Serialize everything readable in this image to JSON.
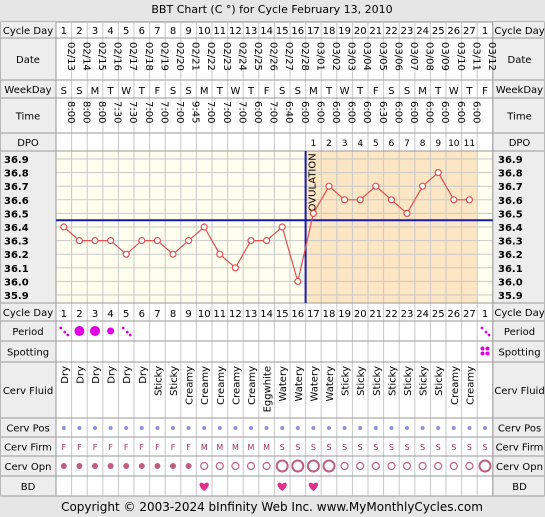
{
  "title": "BBT Chart (C °) for Cycle February 13, 2010",
  "footer": "Copyright © 2003-2024 bInfinity Web Inc.    www.MyMonthlyCycles.com",
  "row_labels": {
    "cycle_day": "Cycle Day",
    "date": "Date",
    "weekday": "WeekDay",
    "time": "Time",
    "dpo": "DPO",
    "period": "Period",
    "spotting": "Spotting",
    "cerv_fluid": "Cerv Fluid",
    "cerv_pos": "Cerv Pos",
    "cerv_firm": "Cerv Firm",
    "cerv_opn": "Cerv Opn",
    "bd": "BD"
  },
  "ovulation_label": "OVULATION",
  "colors": {
    "chart_bg": "#fffff0",
    "grid": "#c8c8c8",
    "post_ovulation_fill": "#fde6c4",
    "line": "#e05050",
    "coverline": "#1a1aaa",
    "period": "#e000e0",
    "dot": "#c06080",
    "pos_dot": "#9090e0",
    "heart": "#e0308a"
  },
  "days": [
    {
      "cd": "1",
      "date": "02/13",
      "wd": "S",
      "time": "8:00",
      "dpo": "",
      "period": "spot",
      "spotting": false,
      "fluid": "Dry",
      "pos": "dot",
      "firm": "F",
      "opn": "closed",
      "bd": false
    },
    {
      "cd": "2",
      "date": "02/14",
      "wd": "S",
      "time": "8:00",
      "dpo": "",
      "period": "heavy",
      "spotting": false,
      "fluid": "Dry",
      "pos": "dot",
      "firm": "F",
      "opn": "closed",
      "bd": false
    },
    {
      "cd": "3",
      "date": "02/15",
      "wd": "M",
      "time": "8:00",
      "dpo": "",
      "period": "heavy",
      "spotting": false,
      "fluid": "Dry",
      "pos": "dot",
      "firm": "F",
      "opn": "closed",
      "bd": false
    },
    {
      "cd": "4",
      "date": "02/16",
      "wd": "T",
      "time": "7:30",
      "dpo": "",
      "period": "medium",
      "spotting": false,
      "fluid": "Dry",
      "pos": "dot",
      "firm": "F",
      "opn": "closed",
      "bd": false
    },
    {
      "cd": "5",
      "date": "02/17",
      "wd": "W",
      "time": "7:30",
      "dpo": "",
      "period": "spot",
      "spotting": false,
      "fluid": "Dry",
      "pos": "dot",
      "firm": "F",
      "opn": "closed",
      "bd": false
    },
    {
      "cd": "6",
      "date": "02/18",
      "wd": "T",
      "time": "7:00",
      "dpo": "",
      "period": "",
      "spotting": false,
      "fluid": "Dry",
      "pos": "dot",
      "firm": "F",
      "opn": "closed",
      "bd": false
    },
    {
      "cd": "7",
      "date": "02/19",
      "wd": "F",
      "time": "7:00",
      "dpo": "",
      "period": "",
      "spotting": false,
      "fluid": "Sticky",
      "pos": "dot",
      "firm": "F",
      "opn": "closed",
      "bd": false
    },
    {
      "cd": "8",
      "date": "02/20",
      "wd": "S",
      "time": "7:00",
      "dpo": "",
      "period": "",
      "spotting": false,
      "fluid": "Sticky",
      "pos": "dot",
      "firm": "F",
      "opn": "closed",
      "bd": false
    },
    {
      "cd": "9",
      "date": "02/21",
      "wd": "S",
      "time": "9:45",
      "dpo": "",
      "period": "",
      "spotting": false,
      "fluid": "Creamy",
      "pos": "dot",
      "firm": "F",
      "opn": "closed",
      "bd": false
    },
    {
      "cd": "10",
      "date": "02/22",
      "wd": "M",
      "time": "7:00",
      "dpo": "",
      "period": "",
      "spotting": false,
      "fluid": "Creamy",
      "pos": "dot",
      "firm": "M",
      "opn": "med",
      "bd": true
    },
    {
      "cd": "11",
      "date": "02/23",
      "wd": "T",
      "time": "7:00",
      "dpo": "",
      "period": "",
      "spotting": false,
      "fluid": "Creamy",
      "pos": "dot",
      "firm": "M",
      "opn": "med",
      "bd": false
    },
    {
      "cd": "12",
      "date": "02/24",
      "wd": "W",
      "time": "7:00",
      "dpo": "",
      "period": "",
      "spotting": false,
      "fluid": "Creamy",
      "pos": "dot",
      "firm": "M",
      "opn": "med",
      "bd": false
    },
    {
      "cd": "13",
      "date": "02/25",
      "wd": "T",
      "time": "6:00",
      "dpo": "",
      "period": "",
      "spotting": false,
      "fluid": "Creamy",
      "pos": "dot",
      "firm": "M",
      "opn": "med",
      "bd": false
    },
    {
      "cd": "14",
      "date": "02/26",
      "wd": "F",
      "time": "7:00",
      "dpo": "",
      "period": "",
      "spotting": false,
      "fluid": "Eggwhite",
      "pos": "dot",
      "firm": "M",
      "opn": "med",
      "bd": false
    },
    {
      "cd": "15",
      "date": "02/27",
      "wd": "S",
      "time": "6:40",
      "dpo": "",
      "period": "",
      "spotting": false,
      "fluid": "Watery",
      "pos": "dot",
      "firm": "S",
      "opn": "open",
      "bd": true
    },
    {
      "cd": "16",
      "date": "02/28",
      "wd": "S",
      "time": "6:00",
      "dpo": "",
      "period": "",
      "spotting": false,
      "fluid": "Watery",
      "pos": "dot",
      "firm": "S",
      "opn": "open",
      "bd": false
    },
    {
      "cd": "17",
      "date": "03/01",
      "wd": "M",
      "time": "6:00",
      "dpo": "1",
      "period": "",
      "spotting": false,
      "fluid": "Watery",
      "pos": "dot",
      "firm": "S",
      "opn": "open",
      "bd": true
    },
    {
      "cd": "18",
      "date": "03/02",
      "wd": "T",
      "time": "6:00",
      "dpo": "2",
      "period": "",
      "spotting": false,
      "fluid": "Watery",
      "pos": "dot",
      "firm": "S",
      "opn": "open",
      "bd": false
    },
    {
      "cd": "19",
      "date": "03/03",
      "wd": "W",
      "time": "6:00",
      "dpo": "3",
      "period": "",
      "spotting": false,
      "fluid": "Sticky",
      "pos": "dot",
      "firm": "S",
      "opn": "med",
      "bd": false
    },
    {
      "cd": "20",
      "date": "03/04",
      "wd": "T",
      "time": "6:00",
      "dpo": "4",
      "period": "",
      "spotting": false,
      "fluid": "Sticky",
      "pos": "dot",
      "firm": "S",
      "opn": "med",
      "bd": false
    },
    {
      "cd": "21",
      "date": "03/05",
      "wd": "F",
      "time": "6:30",
      "dpo": "5",
      "period": "",
      "spotting": false,
      "fluid": "Sticky",
      "pos": "dot",
      "firm": "S",
      "opn": "med",
      "bd": false
    },
    {
      "cd": "22",
      "date": "03/06",
      "wd": "S",
      "time": "6:00",
      "dpo": "6",
      "period": "",
      "spotting": false,
      "fluid": "Sticky",
      "pos": "dot",
      "firm": "S",
      "opn": "med",
      "bd": false
    },
    {
      "cd": "23",
      "date": "03/07",
      "wd": "S",
      "time": "6:00",
      "dpo": "7",
      "period": "",
      "spotting": false,
      "fluid": "Sticky",
      "pos": "dot",
      "firm": "S",
      "opn": "med",
      "bd": false
    },
    {
      "cd": "24",
      "date": "03/08",
      "wd": "M",
      "time": "6:00",
      "dpo": "8",
      "period": "",
      "spotting": false,
      "fluid": "Sticky",
      "pos": "dot",
      "firm": "S",
      "opn": "med",
      "bd": false
    },
    {
      "cd": "25",
      "date": "03/09",
      "wd": "T",
      "time": "6:00",
      "dpo": "9",
      "period": "",
      "spotting": false,
      "fluid": "Sticky",
      "pos": "dot",
      "firm": "S",
      "opn": "med",
      "bd": false
    },
    {
      "cd": "26",
      "date": "03/10",
      "wd": "W",
      "time": "6:00",
      "dpo": "10",
      "period": "",
      "spotting": false,
      "fluid": "Creamy",
      "pos": "dot",
      "firm": "S",
      "opn": "med",
      "bd": false
    },
    {
      "cd": "27",
      "date": "03/11",
      "wd": "T",
      "time": "6:00",
      "dpo": "11",
      "period": "",
      "spotting": false,
      "fluid": "Creamy",
      "pos": "dot",
      "firm": "S",
      "opn": "med",
      "bd": false
    },
    {
      "cd": "1",
      "date": "03/12",
      "wd": "F",
      "time": "",
      "dpo": "",
      "period": "spot",
      "spotting": true,
      "fluid": "",
      "pos": "dot",
      "firm": "S",
      "opn": "open",
      "bd": false
    }
  ],
  "chart_data": {
    "type": "line",
    "title": "BBT Chart (C °) for Cycle February 13, 2010",
    "xlabel": "Cycle Day",
    "ylabel": "",
    "x": [
      1,
      2,
      3,
      4,
      5,
      6,
      7,
      8,
      9,
      10,
      11,
      12,
      13,
      14,
      15,
      16,
      17,
      18,
      19,
      20,
      21,
      22,
      23,
      24,
      25,
      26,
      27
    ],
    "series": [
      {
        "values": [
          36.4,
          36.3,
          36.3,
          36.3,
          36.2,
          36.3,
          36.3,
          36.2,
          36.3,
          36.4,
          36.2,
          36.1,
          36.3,
          36.3,
          36.4,
          36.0,
          36.5,
          36.7,
          36.6,
          36.6,
          36.7,
          36.6,
          36.5,
          36.7,
          36.8,
          36.6,
          36.6
        ]
      }
    ],
    "ylim": [
      35.9,
      36.9
    ],
    "yticks": [
      "36.9",
      "36.8",
      "36.7",
      "36.6",
      "36.5",
      "36.4",
      "36.3",
      "36.2",
      "36.1",
      "36.0",
      "35.9"
    ],
    "coverline": 36.45,
    "ovulation_day": 16,
    "grid": true
  }
}
